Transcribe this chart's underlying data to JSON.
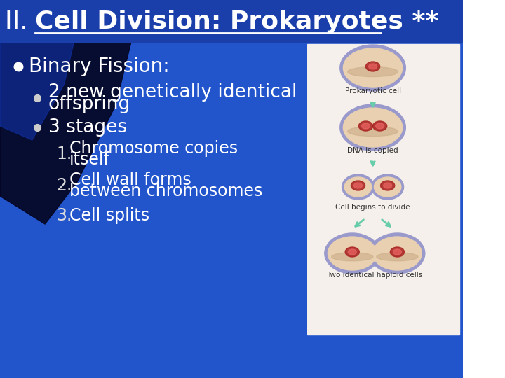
{
  "title_prefix": "II. ",
  "title_bold": "Cell Division: Prokaryotes **",
  "title_color": "#ffffff",
  "title_fontsize": 26,
  "bg_color": "#2255cc",
  "title_bar_color": "#1a3eaa",
  "dark_shape_color": "#040420",
  "mid_shape_color": "#1133aa",
  "diagram_panel_color": "#f5f0eb",
  "bullet1": "Binary Fission:",
  "bullet1_fontsize": 20,
  "sub_bullet1_line1": "2 new genetically identical",
  "sub_bullet1_line2": "offspring",
  "sub_bullet2": "3 stages",
  "sub_bullet_fontsize": 19,
  "num1_line1": "Chromosome copies",
  "num1_line2": "itself",
  "num2_line1": "Cell wall forms",
  "num2_line2": "between chromosomes",
  "num3": "Cell splits",
  "numbered_fontsize": 17,
  "content_color": "#ffffff",
  "dim_color": "#dddddd",
  "diagram_labels": [
    "Prokaryotic cell",
    "DNA is copied",
    "Cell begins to divide",
    "Two identical haploid cells"
  ],
  "diagram_label_fontsize": 7.5,
  "diagram_label_color": "#333333",
  "arrow_color": "#66ccaa",
  "cell_body_color": "#e8d0b0",
  "cell_border_color": "#9999cc",
  "cell_shadow_color": "#c8a882",
  "nucleus_outer_color": "#aa2222",
  "nucleus_inner_color": "#ee6666"
}
